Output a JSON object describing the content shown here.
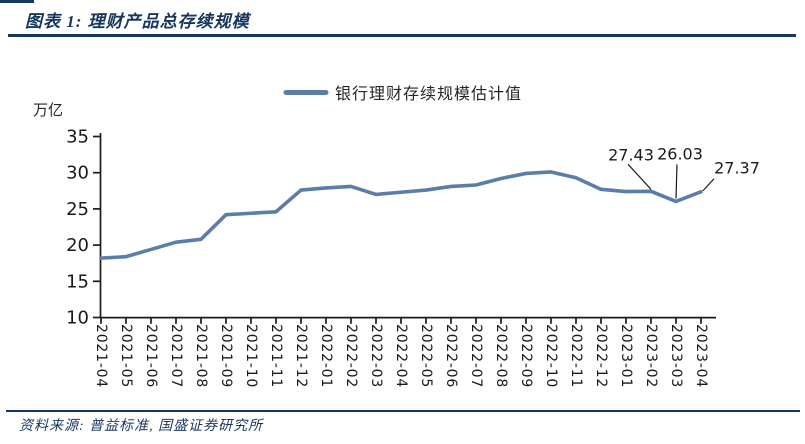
{
  "header": {
    "title": "图表 1: 理财产品总存续规模"
  },
  "legend": {
    "label": "银行理财存续规模估计值"
  },
  "y_axis_unit": "万亿",
  "footer": {
    "source": "资料来源: 普益标准, 国盛证券研究所"
  },
  "colors": {
    "navy": "#17375E",
    "line_blue": "#5B7EA8",
    "axis_black": "#1A1A1A"
  },
  "chart_data": {
    "type": "line",
    "title": "理财产品总存续规模",
    "unit": "万亿",
    "legend_position": "top",
    "grid": false,
    "categories": [
      "2021-04",
      "2021-05",
      "2021-06",
      "2021-07",
      "2021-08",
      "2021-09",
      "2021-10",
      "2021-11",
      "2021-12",
      "2022-01",
      "2022-02",
      "2022-03",
      "2022-04",
      "2022-05",
      "2022-06",
      "2022-07",
      "2022-08",
      "2022-09",
      "2022-10",
      "2022-11",
      "2022-12",
      "2023-01",
      "2023-02",
      "2023-03",
      "2023-04"
    ],
    "series": [
      {
        "name": "银行理财存续规模估计值",
        "values": [
          18.2,
          18.4,
          19.4,
          20.4,
          20.8,
          24.2,
          24.4,
          24.6,
          27.6,
          27.9,
          28.1,
          27.0,
          27.3,
          27.6,
          28.1,
          28.3,
          29.2,
          29.9,
          30.1,
          29.3,
          27.7,
          27.4,
          27.43,
          26.03,
          27.37
        ]
      }
    ],
    "ylim": [
      10,
      35
    ],
    "ytick_step": 5,
    "annotations": [
      {
        "category": "2023-02",
        "label": "27.43"
      },
      {
        "category": "2023-03",
        "label": "26.03"
      },
      {
        "category": "2023-04",
        "label": "27.37"
      }
    ]
  }
}
